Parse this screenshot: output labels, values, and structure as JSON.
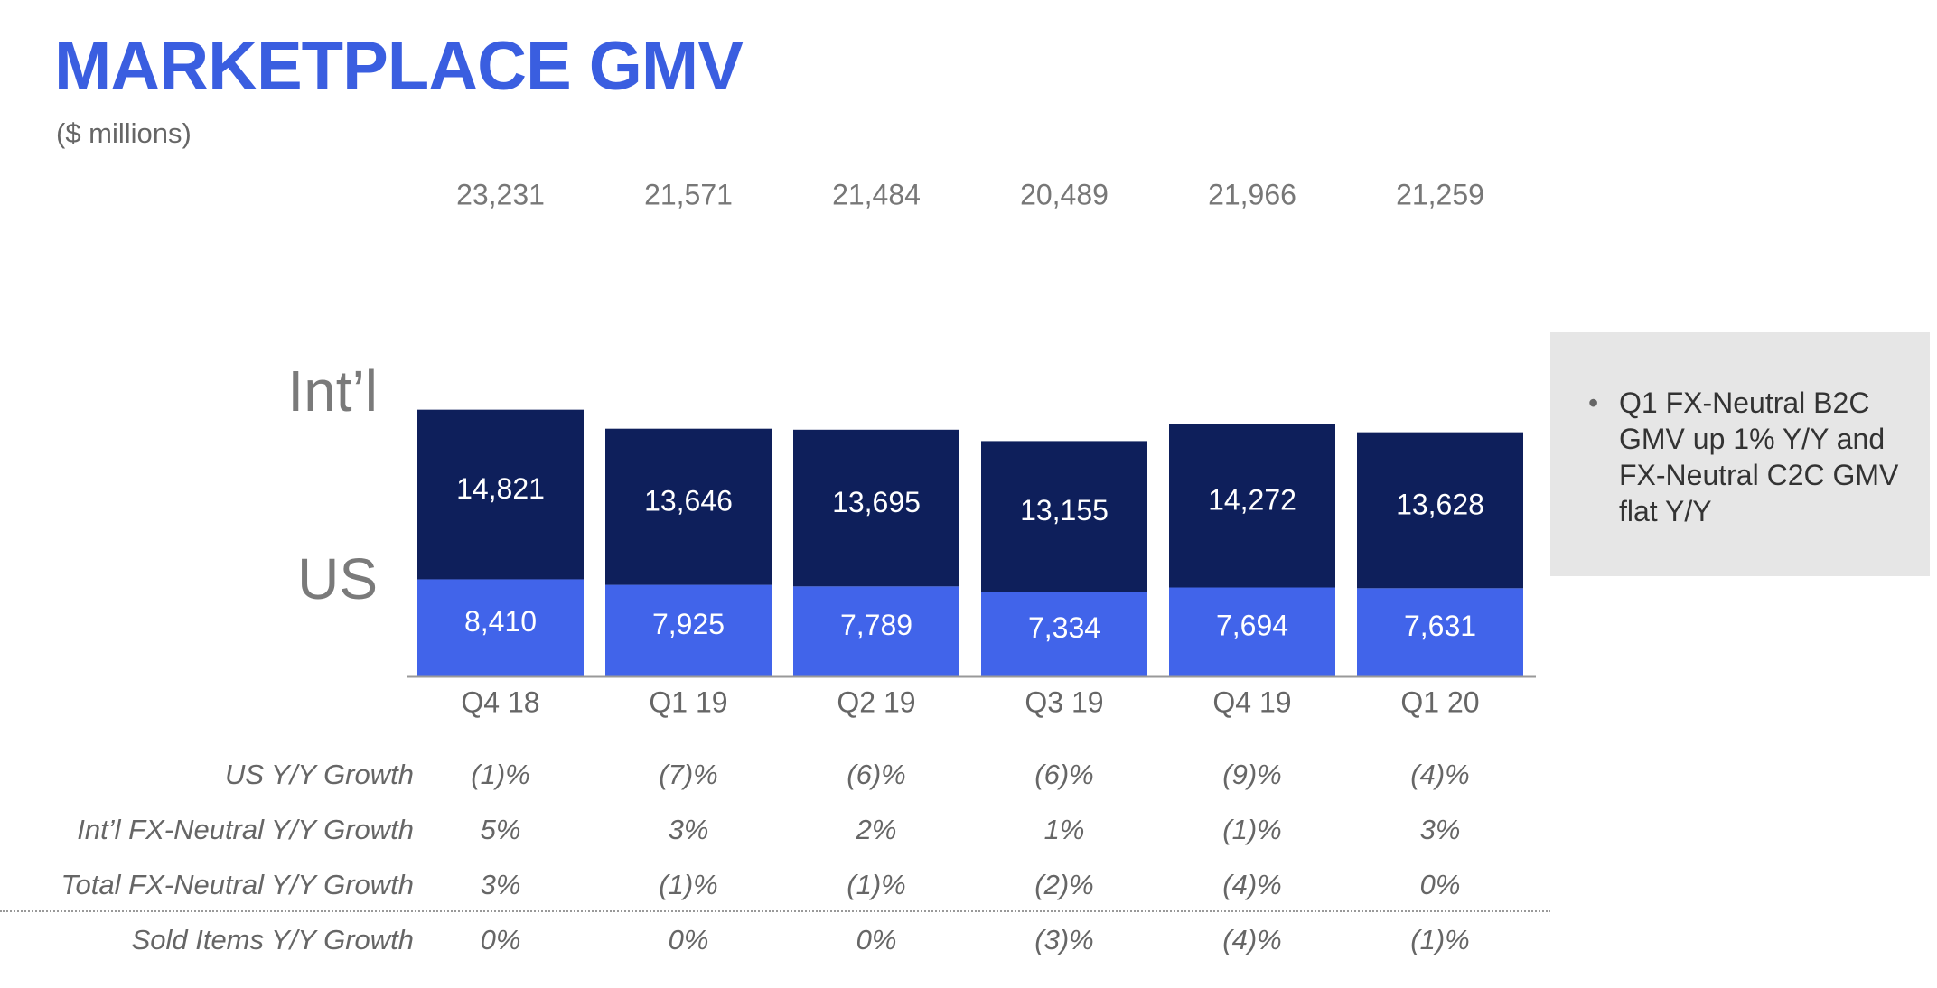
{
  "title": "MARKETPLACE GMV",
  "subtitle": "($ millions)",
  "segment_labels": {
    "intl": "Int’l",
    "us": "US"
  },
  "colors": {
    "title": "#3a5ee0",
    "intl": "#0e1f5b",
    "us": "#4164ea",
    "axis": "#999999"
  },
  "note": {
    "text": "Q1 FX-Neutral B2C GMV up 1% Y/Y and FX-Neutral C2C GMV flat Y/Y"
  },
  "chart_data": {
    "type": "bar",
    "stacked": true,
    "categories": [
      "Q4 18",
      "Q1 19",
      "Q2 19",
      "Q3 19",
      "Q4 19",
      "Q1 20"
    ],
    "totals": [
      "23,231",
      "21,571",
      "21,484",
      "20,489",
      "21,966",
      "21,259"
    ],
    "series": [
      {
        "name": "US",
        "values": [
          8410,
          7925,
          7789,
          7334,
          7694,
          7631
        ],
        "labels": [
          "8,410",
          "7,925",
          "7,789",
          "7,334",
          "7,694",
          "7,631"
        ]
      },
      {
        "name": "Int’l",
        "values": [
          14821,
          13646,
          13695,
          13155,
          14272,
          13628
        ],
        "labels": [
          "14,821",
          "13,646",
          "13,695",
          "13,155",
          "14,272",
          "13,628"
        ]
      }
    ],
    "ylabel": "",
    "xlabel": "",
    "ylim": [
      0,
      23231
    ]
  },
  "metrics": [
    {
      "label": "US Y/Y Growth",
      "values": [
        "(1)%",
        "(7)%",
        "(6)%",
        "(6)%",
        "(9)%",
        "(4)%"
      ]
    },
    {
      "label": "Int’l FX-Neutral Y/Y Growth",
      "values": [
        "5%",
        "3%",
        "2%",
        "1%",
        "(1)%",
        "3%"
      ]
    },
    {
      "label": "Total FX-Neutral Y/Y Growth",
      "values": [
        "3%",
        "(1)%",
        "(1)%",
        "(2)%",
        "(4)%",
        "0%"
      ]
    },
    {
      "label": "Sold Items Y/Y Growth",
      "values": [
        "0%",
        "0%",
        "0%",
        "(3)%",
        "(4)%",
        "(1)%"
      ]
    }
  ]
}
